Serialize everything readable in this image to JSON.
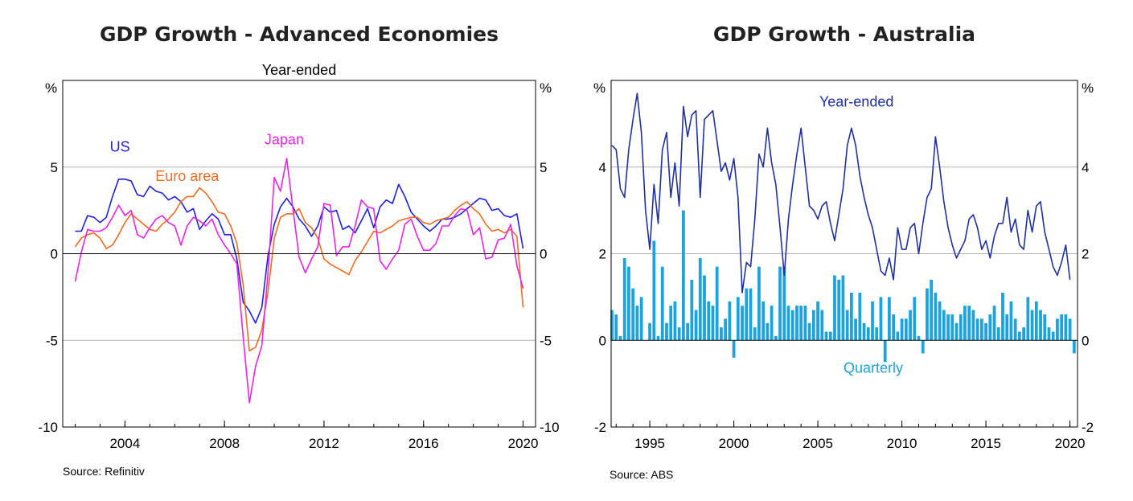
{
  "chart_data": [
    {
      "type": "line",
      "title": "GDP Growth - Advanced Economies",
      "subtitle": "Year-ended",
      "ylabel_left": "%",
      "ylabel_right": "%",
      "ylim": [
        -10,
        10
      ],
      "yticks": [
        -10,
        -5,
        0,
        5
      ],
      "xlim": [
        2001.5,
        2020.5
      ],
      "xticks": [
        2004,
        2008,
        2012,
        2016,
        2020
      ],
      "grid": "horizontal",
      "source": "Source:   Refinitiv",
      "series": [
        {
          "name": "US",
          "color": "#1f1fe6",
          "label_x": 2003.8,
          "label_y": 5.9,
          "x": [
            2002.0,
            2002.25,
            2002.5,
            2002.75,
            2003.0,
            2003.25,
            2003.5,
            2003.75,
            2004.0,
            2004.25,
            2004.5,
            2004.75,
            2005.0,
            2005.25,
            2005.5,
            2005.75,
            2006.0,
            2006.25,
            2006.5,
            2006.75,
            2007.0,
            2007.25,
            2007.5,
            2007.75,
            2008.0,
            2008.25,
            2008.5,
            2008.75,
            2009.0,
            2009.25,
            2009.5,
            2009.75,
            2010.0,
            2010.25,
            2010.5,
            2010.75,
            2011.0,
            2011.25,
            2011.5,
            2011.75,
            2012.0,
            2012.25,
            2012.5,
            2012.75,
            2013.0,
            2013.25,
            2013.5,
            2013.75,
            2014.0,
            2014.25,
            2014.5,
            2014.75,
            2015.0,
            2015.25,
            2015.5,
            2015.75,
            2016.0,
            2016.25,
            2016.5,
            2016.75,
            2017.0,
            2017.25,
            2017.5,
            2017.75,
            2018.0,
            2018.25,
            2018.5,
            2018.75,
            2019.0,
            2019.25,
            2019.5,
            2019.75,
            2020.0
          ],
          "y": [
            1.3,
            1.3,
            2.2,
            2.1,
            1.8,
            2.1,
            3.3,
            4.3,
            4.3,
            4.2,
            3.4,
            3.3,
            3.9,
            3.6,
            3.5,
            3.1,
            3.3,
            3.0,
            2.4,
            2.6,
            1.4,
            1.9,
            2.3,
            2.0,
            1.1,
            1.1,
            -0.3,
            -2.8,
            -3.3,
            -4.0,
            -3.1,
            -0.1,
            1.7,
            2.7,
            3.2,
            2.7,
            2.0,
            1.6,
            1.0,
            1.6,
            2.7,
            2.4,
            2.5,
            1.4,
            1.6,
            1.2,
            1.9,
            2.6,
            1.5,
            2.7,
            3.1,
            2.9,
            4.0,
            3.3,
            2.4,
            2.0,
            1.6,
            1.3,
            1.6,
            2.0,
            2.0,
            2.1,
            2.3,
            2.6,
            2.9,
            3.2,
            3.1,
            2.5,
            2.6,
            2.2,
            2.1,
            2.3,
            0.3
          ]
        },
        {
          "name": "Euro area",
          "color": "#f26b1d",
          "label_x": 2006.5,
          "label_y": 4.2,
          "x": [
            2002.0,
            2002.25,
            2002.5,
            2002.75,
            2003.0,
            2003.25,
            2003.5,
            2003.75,
            2004.0,
            2004.25,
            2004.5,
            2004.75,
            2005.0,
            2005.25,
            2005.5,
            2005.75,
            2006.0,
            2006.25,
            2006.5,
            2006.75,
            2007.0,
            2007.25,
            2007.5,
            2007.75,
            2008.0,
            2008.25,
            2008.5,
            2008.75,
            2009.0,
            2009.25,
            2009.5,
            2009.75,
            2010.0,
            2010.25,
            2010.5,
            2010.75,
            2011.0,
            2011.25,
            2011.5,
            2011.75,
            2012.0,
            2012.25,
            2012.5,
            2012.75,
            2013.0,
            2013.25,
            2013.5,
            2013.75,
            2014.0,
            2014.25,
            2014.5,
            2014.75,
            2015.0,
            2015.25,
            2015.5,
            2015.75,
            2016.0,
            2016.25,
            2016.5,
            2016.75,
            2017.0,
            2017.25,
            2017.5,
            2017.75,
            2018.0,
            2018.25,
            2018.5,
            2018.75,
            2019.0,
            2019.25,
            2019.5,
            2019.75,
            2020.0
          ],
          "y": [
            0.4,
            0.9,
            1.1,
            1.2,
            0.9,
            0.3,
            0.5,
            1.1,
            1.8,
            2.3,
            2.0,
            1.7,
            1.4,
            1.3,
            1.7,
            2.0,
            2.4,
            3.0,
            3.3,
            3.3,
            3.8,
            3.5,
            3.0,
            2.4,
            2.3,
            1.6,
            0.6,
            -1.8,
            -5.6,
            -5.4,
            -4.4,
            -2.2,
            0.9,
            2.1,
            2.3,
            2.3,
            2.6,
            1.8,
            1.5,
            0.9,
            -0.3,
            -0.6,
            -0.8,
            -1.0,
            -1.2,
            -0.4,
            0.1,
            0.7,
            1.3,
            1.2,
            1.4,
            1.6,
            1.9,
            2.0,
            2.1,
            2.1,
            1.8,
            1.7,
            1.9,
            2.0,
            2.1,
            2.5,
            2.8,
            3.0,
            2.6,
            2.3,
            1.7,
            1.3,
            1.4,
            1.2,
            1.4,
            1.0,
            -3.1
          ]
        },
        {
          "name": "Japan",
          "color": "#f020f0",
          "label_x": 2010.4,
          "label_y": 6.3,
          "x": [
            2002.0,
            2002.25,
            2002.5,
            2002.75,
            2003.0,
            2003.25,
            2003.5,
            2003.75,
            2004.0,
            2004.25,
            2004.5,
            2004.75,
            2005.0,
            2005.25,
            2005.5,
            2005.75,
            2006.0,
            2006.25,
            2006.5,
            2006.75,
            2007.0,
            2007.25,
            2007.5,
            2007.75,
            2008.0,
            2008.25,
            2008.5,
            2008.75,
            2009.0,
            2009.25,
            2009.5,
            2009.75,
            2010.0,
            2010.25,
            2010.5,
            2010.75,
            2011.0,
            2011.25,
            2011.5,
            2011.75,
            2012.0,
            2012.25,
            2012.5,
            2012.75,
            2013.0,
            2013.25,
            2013.5,
            2013.75,
            2014.0,
            2014.25,
            2014.5,
            2014.75,
            2015.0,
            2015.25,
            2015.5,
            2015.75,
            2016.0,
            2016.25,
            2016.5,
            2016.75,
            2017.0,
            2017.25,
            2017.5,
            2017.75,
            2018.0,
            2018.25,
            2018.5,
            2018.75,
            2019.0,
            2019.25,
            2019.5,
            2019.75,
            2020.0
          ],
          "y": [
            -1.6,
            0.1,
            1.4,
            1.3,
            1.3,
            1.5,
            2.1,
            2.8,
            2.2,
            2.5,
            1.1,
            0.9,
            1.5,
            2.0,
            2.2,
            1.8,
            1.6,
            0.5,
            1.6,
            2.1,
            1.9,
            1.6,
            2.0,
            1.1,
            0.5,
            0.0,
            -0.6,
            -4.8,
            -8.6,
            -6.5,
            -5.3,
            -1.1,
            4.4,
            3.6,
            5.5,
            2.6,
            -0.2,
            -1.1,
            -0.3,
            0.4,
            2.9,
            2.8,
            -0.1,
            0.4,
            0.4,
            1.6,
            3.1,
            2.7,
            2.6,
            -0.4,
            -0.9,
            -0.3,
            0.2,
            1.7,
            2.0,
            1.0,
            0.2,
            0.2,
            0.6,
            1.6,
            1.6,
            2.2,
            2.6,
            2.5,
            1.1,
            1.5,
            -0.3,
            -0.2,
            0.8,
            0.9,
            1.7,
            -0.7,
            -2.0
          ]
        }
      ]
    },
    {
      "type": "bar+line",
      "title": "GDP Growth - Australia",
      "ylabel_left": "%",
      "ylabel_right": "%",
      "ylim": [
        -2,
        6
      ],
      "yticks": [
        -2,
        0,
        2,
        4
      ],
      "xlim": [
        1992.7,
        2020.45
      ],
      "xticks": [
        1995,
        2000,
        2005,
        2010,
        2015,
        2020
      ],
      "grid": "horizontal",
      "source": "Source:   ABS",
      "series": [
        {
          "name": "Year-ended",
          "kind": "line",
          "color": "#1f2fa6",
          "label_x": 2007.3,
          "label_y": 5.4,
          "x_start": 1992.75,
          "x_step": 0.25,
          "values": [
            4.5,
            4.4,
            3.5,
            3.3,
            4.4,
            5.1,
            5.7,
            4.8,
            3.0,
            2.1,
            3.6,
            2.7,
            4.4,
            4.8,
            3.3,
            4.1,
            3.1,
            5.4,
            4.7,
            5.2,
            5.3,
            3.3,
            5.1,
            5.2,
            5.3,
            4.6,
            3.9,
            4.1,
            3.7,
            4.2,
            3.3,
            1.1,
            1.8,
            1.7,
            2.8,
            4.3,
            4.0,
            4.9,
            4.1,
            3.6,
            2.6,
            1.5,
            2.8,
            3.6,
            4.3,
            4.9,
            4.0,
            3.1,
            3.0,
            2.8,
            3.1,
            3.2,
            2.7,
            2.3,
            2.9,
            3.5,
            4.5,
            4.9,
            4.5,
            3.8,
            3.3,
            2.9,
            2.6,
            2.1,
            1.6,
            1.5,
            1.9,
            1.4,
            2.6,
            2.1,
            2.1,
            2.6,
            2.7,
            2.0,
            2.7,
            3.3,
            3.5,
            4.7,
            4.0,
            3.2,
            2.6,
            2.2,
            1.9,
            2.1,
            2.3,
            2.8,
            2.9,
            2.6,
            2.1,
            2.3,
            1.9,
            2.4,
            2.7,
            2.7,
            3.3,
            2.5,
            2.8,
            2.2,
            2.1,
            3.0,
            2.5,
            3.1,
            3.2,
            2.5,
            2.1,
            1.7,
            1.5,
            1.8,
            2.2,
            1.4
          ]
        },
        {
          "name": "Quarterly",
          "kind": "bar",
          "color": "#1aa3dd",
          "label_x": 2008.3,
          "label_y": -0.75,
          "x_start": 1992.75,
          "x_step": 0.25,
          "values": [
            0.7,
            0.6,
            0.1,
            1.9,
            1.7,
            1.2,
            0.8,
            1.0,
            0.0,
            0.4,
            2.3,
            0.1,
            1.7,
            0.4,
            0.8,
            0.9,
            0.3,
            3.0,
            0.4,
            1.4,
            0.7,
            1.9,
            1.5,
            0.9,
            0.8,
            1.7,
            0.3,
            0.5,
            0.9,
            -0.4,
            1.0,
            0.8,
            1.2,
            1.2,
            0.3,
            1.7,
            0.9,
            0.4,
            0.8,
            0.1,
            1.7,
            1.7,
            0.8,
            0.7,
            0.8,
            0.8,
            0.8,
            0.4,
            0.7,
            0.9,
            0.7,
            0.2,
            0.2,
            1.5,
            1.4,
            1.5,
            0.7,
            1.1,
            0.5,
            1.1,
            0.4,
            0.3,
            0.9,
            0.3,
            1.0,
            -0.5,
            1.0,
            0.6,
            0.2,
            0.5,
            0.5,
            0.7,
            1.0,
            0.1,
            -0.3,
            1.2,
            1.4,
            1.1,
            0.9,
            0.7,
            0.6,
            0.6,
            0.4,
            0.6,
            0.8,
            0.8,
            0.7,
            0.5,
            0.5,
            0.4,
            0.6,
            0.8,
            0.3,
            1.1,
            0.6,
            0.9,
            0.5,
            0.2,
            0.3,
            1.0,
            0.7,
            0.9,
            0.7,
            0.6,
            0.3,
            0.2,
            0.5,
            0.6,
            0.6,
            0.5,
            -0.3
          ]
        }
      ]
    }
  ]
}
